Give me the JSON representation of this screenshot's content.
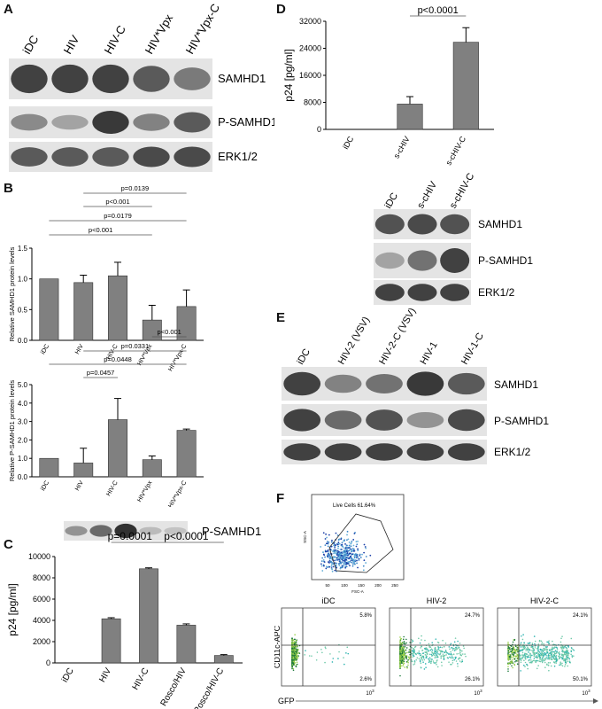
{
  "panels": {
    "A": {
      "letter": "A",
      "lanes": [
        "iDC",
        "HIV",
        "HIV-C",
        "HIV*Vpx",
        "HIV*Vpx-C"
      ],
      "blots": [
        "SAMHD1",
        "P-SAMHD1",
        "ERK1/2"
      ]
    },
    "B": {
      "letter": "B",
      "top": {
        "ylabel": "Relative SAMHD1 protein levels",
        "pvals": [
          "p=0.0139",
          "p<0.001",
          "p=0.0179",
          "p<0.001"
        ]
      },
      "bottom": {
        "ylabel": "Relative P-SAMHD1 protein levels",
        "pvals": [
          "p<0.001",
          "p=0.0331",
          "p=0.0448",
          "p=0.0457"
        ]
      }
    },
    "C": {
      "letter": "C",
      "blot": "P-SAMHD1",
      "ylabel": "p24 [pg/ml]",
      "pvals": [
        "p=0.0001",
        "p<0.0001"
      ]
    },
    "D": {
      "letter": "D",
      "ylabel": "p24 [pg/ml]",
      "pval": "p<0.0001",
      "lanes": [
        "iDC",
        "s-cHIV",
        "s-cHIV-C"
      ],
      "blots": [
        "SAMHD1",
        "P-SAMHD1",
        "ERK1/2"
      ]
    },
    "E": {
      "letter": "E",
      "lanes": [
        "iDC",
        "HIV-2 (VSV)",
        "HIV-2-C (VSV)",
        "HIV-1",
        "HIV-1-C"
      ],
      "blots": [
        "SAMHD1",
        "P-SAMHD1",
        "ERK1/2"
      ]
    },
    "F": {
      "letter": "F",
      "gate_label": "Live Cells 61.64%",
      "gate_axis_x": "FSC-A",
      "gate_axis_y": "SSC-A",
      "gate_ticks": [
        "50",
        "100",
        "150",
        "200",
        "250"
      ],
      "plots": [
        {
          "title": "iDC",
          "q_ur": "5.8%",
          "q_lr": "2.6%"
        },
        {
          "title": "HIV-2",
          "q_ur": "24.7%",
          "q_lr": "26.1%"
        },
        {
          "title": "HIV-2-C",
          "q_ur": "24.1%",
          "q_lr": "50.1%"
        }
      ],
      "ylabel": "CD11c-APC",
      "xlabel": "GFP",
      "x_tick": "10",
      "x_tick_exp": "3"
    }
  },
  "chart_data": [
    {
      "panel": "B-top",
      "type": "bar",
      "categories": [
        "iDC",
        "HIV",
        "HIV-C",
        "HIV*Vpx",
        "HIV*Vpx-C"
      ],
      "values": [
        1.0,
        0.94,
        1.05,
        0.33,
        0.55
      ],
      "errors": [
        0,
        0.12,
        0.22,
        0.24,
        0.27
      ],
      "ylabel": "Relative SAMHD1 protein levels",
      "ylim": [
        0,
        1.5
      ],
      "yticks": [
        "0.0",
        "0.5",
        "1.0",
        "1.5"
      ],
      "color": "#808080"
    },
    {
      "panel": "B-bottom",
      "type": "bar",
      "categories": [
        "iDC",
        "HIV",
        "HIV-C",
        "HIV*Vpx",
        "HIV*Vpx-C"
      ],
      "values": [
        1.0,
        0.75,
        3.1,
        0.93,
        2.52
      ],
      "errors": [
        0,
        0.8,
        1.15,
        0.2,
        0.07
      ],
      "ylabel": "Relative P-SAMHD1 protein levels",
      "ylim": [
        0,
        5.0
      ],
      "yticks": [
        "0.0",
        "1.0",
        "2.0",
        "3.0",
        "4.0",
        "5.0"
      ],
      "color": "#808080"
    },
    {
      "panel": "C",
      "type": "bar",
      "categories": [
        "iDC",
        "HIV",
        "HIV-C",
        "Rosco/HIV",
        "Rosco/HIV-C"
      ],
      "values": [
        0,
        4150,
        8850,
        3550,
        700
      ],
      "errors": [
        0,
        100,
        90,
        120,
        80
      ],
      "ylabel": "p24 [pg/ml]",
      "ylim": [
        0,
        10000
      ],
      "yticks": [
        "0",
        "2000",
        "4000",
        "6000",
        "8000",
        "10000"
      ],
      "color": "#808080"
    },
    {
      "panel": "D",
      "type": "bar",
      "categories": [
        "iDC",
        "s-cHIV",
        "s-cHIV-C"
      ],
      "values": [
        0,
        7500,
        25800
      ],
      "errors": [
        0,
        2200,
        4300
      ],
      "ylabel": "p24 [pg/ml]",
      "ylim": [
        0,
        32000
      ],
      "yticks": [
        "0",
        "8000",
        "16000",
        "24000",
        "32000"
      ],
      "color": "#808080"
    }
  ]
}
